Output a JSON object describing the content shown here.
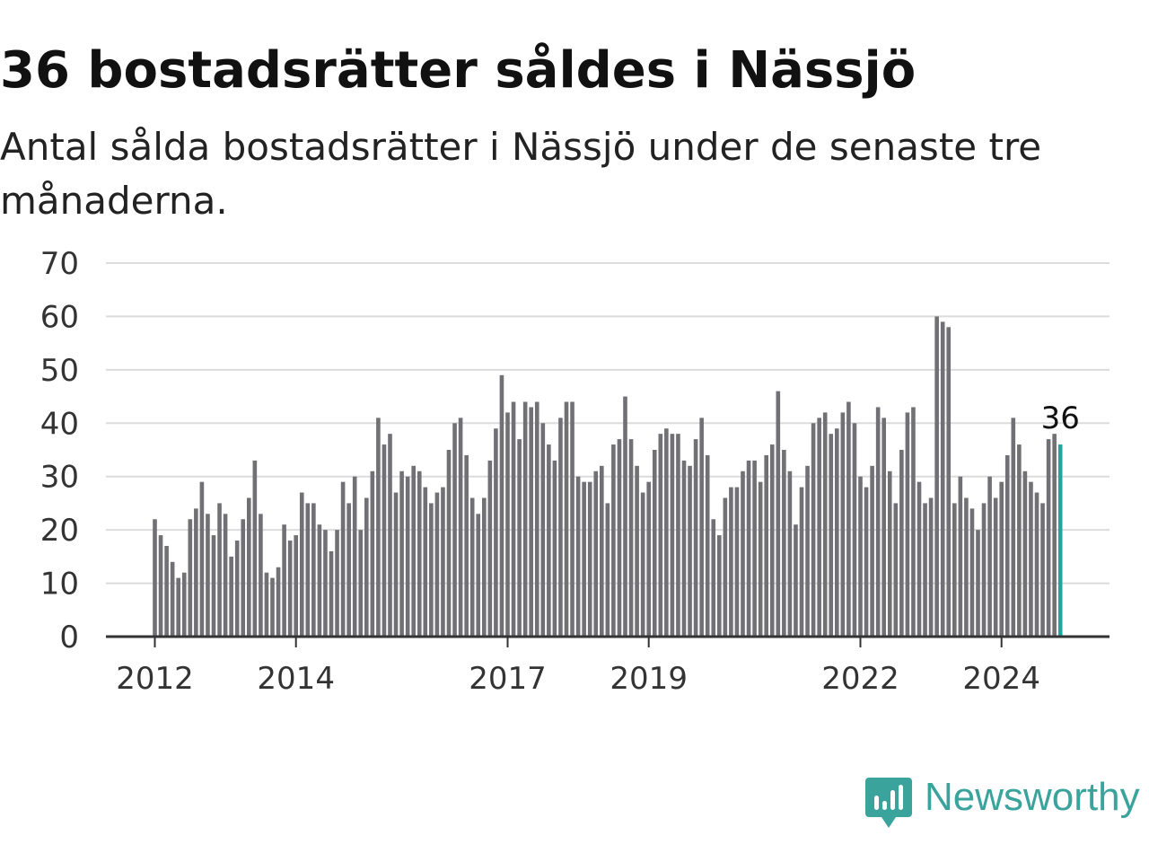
{
  "title": "36 bostadsrätter såldes i Nässjö",
  "subtitle": "Antal sålda bostadsrätter i Nässjö under de senaste tre månaderna.",
  "brand": {
    "name": "Newsworthy",
    "icon": "newsworthy-logo-icon",
    "color": "#3aa39c"
  },
  "chart_data": {
    "type": "bar",
    "title": "",
    "xlabel": "",
    "ylabel": "",
    "ylim": [
      0,
      70
    ],
    "y_ticks": [
      "0",
      "10",
      "20",
      "30",
      "40",
      "50",
      "60",
      "70"
    ],
    "x_tick_labels": [
      {
        "label": "2012",
        "index": 0
      },
      {
        "label": "2014",
        "index": 24
      },
      {
        "label": "2017",
        "index": 60
      },
      {
        "label": "2019",
        "index": 84
      },
      {
        "label": "2022",
        "index": 120
      },
      {
        "label": "2024",
        "index": 144
      }
    ],
    "grid": true,
    "bar_color": "#707075",
    "highlight_color": "#1fa69f",
    "highlight_index": 154,
    "highlight_label": "36",
    "series": [
      {
        "values": [
          22,
          19,
          17,
          14,
          11,
          12,
          22,
          24,
          29,
          23,
          19,
          25,
          23,
          15,
          18,
          22,
          26,
          33,
          23,
          12,
          11,
          13,
          21,
          18,
          19,
          27,
          25,
          25,
          21,
          20,
          16,
          20,
          29,
          25,
          30,
          20,
          26,
          31,
          41,
          36,
          38,
          27,
          31,
          30,
          32,
          31,
          28,
          25,
          27,
          28,
          35,
          40,
          41,
          34,
          26,
          23,
          26,
          33,
          39,
          49,
          42,
          44,
          37,
          44,
          43,
          44,
          40,
          36,
          33,
          41,
          44,
          44,
          30,
          29,
          29,
          31,
          32,
          25,
          36,
          37,
          45,
          37,
          32,
          27,
          29,
          35,
          38,
          39,
          38,
          38,
          33,
          32,
          37,
          41,
          34,
          22,
          19,
          26,
          28,
          28,
          31,
          33,
          33,
          29,
          34,
          36,
          46,
          35,
          31,
          21,
          28,
          32,
          40,
          41,
          42,
          38,
          39,
          42,
          44,
          40,
          30,
          28,
          32,
          43,
          41,
          31,
          25,
          35,
          42,
          43,
          29,
          25,
          26,
          60,
          59,
          58,
          25,
          30,
          26,
          24,
          20,
          25,
          30,
          26,
          29,
          34,
          41,
          36,
          31,
          29,
          27,
          25,
          37,
          38,
          36
        ]
      }
    ]
  }
}
